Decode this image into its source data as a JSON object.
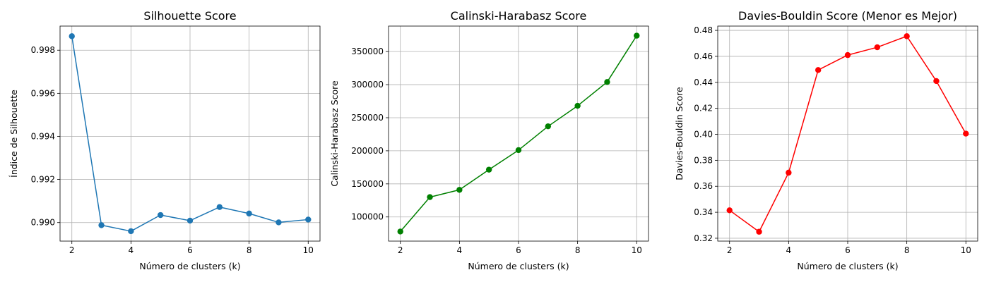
{
  "chart_data": [
    {
      "type": "line",
      "title": "Silhouette Score",
      "xlabel": "Número de clusters (k)",
      "ylabel": "Índice de Silhouette",
      "x": [
        2,
        3,
        4,
        5,
        6,
        7,
        8,
        9,
        10
      ],
      "xticks": [
        2,
        4,
        6,
        8,
        10
      ],
      "yticks": [
        0.99,
        0.992,
        0.994,
        0.996,
        0.998
      ],
      "ytick_labels": [
        "0.990",
        "0.992",
        "0.994",
        "0.996",
        "0.998"
      ],
      "xlim": [
        1.6,
        10.4
      ],
      "ylim": [
        0.98914,
        0.99912
      ],
      "grid": true,
      "series": [
        {
          "color": "#1f77b4",
          "values": [
            0.99865,
            0.98988,
            0.9896,
            0.99035,
            0.99009,
            0.99072,
            0.99042,
            0.99001,
            0.99014
          ]
        }
      ]
    },
    {
      "type": "line",
      "title": "Calinski-Harabasz Score",
      "xlabel": "Número de clusters (k)",
      "ylabel": "Calinski-Harabasz Score",
      "x": [
        2,
        3,
        4,
        5,
        6,
        7,
        8,
        9,
        10
      ],
      "xticks": [
        2,
        4,
        6,
        8,
        10
      ],
      "yticks": [
        100000,
        150000,
        200000,
        250000,
        300000,
        350000
      ],
      "ytick_labels": [
        "100000",
        "150000",
        "200000",
        "250000",
        "300000",
        "350000"
      ],
      "xlim": [
        1.6,
        10.4
      ],
      "ylim": [
        63500,
        388500
      ],
      "grid": true,
      "series": [
        {
          "color": "#008000",
          "values": [
            78000,
            130000,
            141000,
            171500,
            201000,
            237000,
            268000,
            304000,
            374000
          ]
        }
      ]
    },
    {
      "type": "line",
      "title": "Davies-Bouldin Score (Menor es Mejor)",
      "xlabel": "Número de clusters (k)",
      "ylabel": "Davies-Bouldin Score",
      "x": [
        2,
        3,
        4,
        5,
        6,
        7,
        8,
        9,
        10
      ],
      "xticks": [
        2,
        4,
        6,
        8,
        10
      ],
      "yticks": [
        0.32,
        0.34,
        0.36,
        0.38,
        0.4,
        0.42,
        0.44,
        0.46,
        0.48
      ],
      "ytick_labels": [
        "0.32",
        "0.34",
        "0.36",
        "0.38",
        "0.40",
        "0.42",
        "0.44",
        "0.46",
        "0.48"
      ],
      "xlim": [
        1.6,
        10.4
      ],
      "ylim": [
        0.3178,
        0.4833
      ],
      "grid": true,
      "series": [
        {
          "color": "#ff0000",
          "values": [
            0.3415,
            0.325,
            0.3705,
            0.4495,
            0.461,
            0.467,
            0.4755,
            0.441,
            0.4005
          ]
        }
      ]
    }
  ]
}
